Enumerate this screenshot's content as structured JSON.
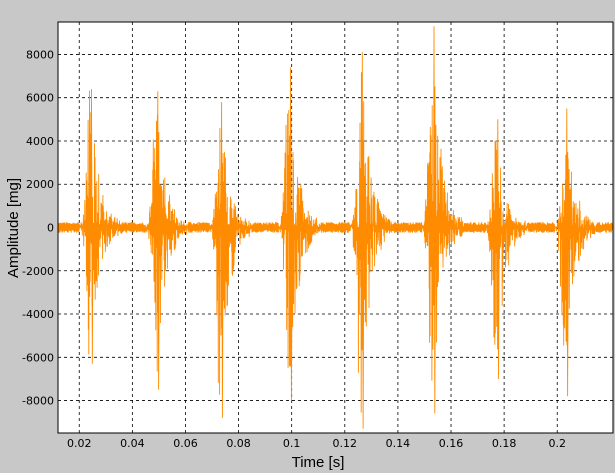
{
  "chart_data": {
    "type": "line",
    "title": "",
    "xlabel": "Time [s]",
    "ylabel": "Amplitude [mg]",
    "xlim": [
      0.012,
      0.221
    ],
    "ylim": [
      -9500,
      9500
    ],
    "xticks": [
      0.02,
      0.04,
      0.06,
      0.08,
      0.1,
      0.12,
      0.14,
      0.16,
      0.18,
      0.2
    ],
    "xtick_labels": [
      "0.02",
      "0.04",
      "0.06",
      "0.08",
      "0.1",
      "0.12",
      "0.14",
      "0.16",
      "0.18",
      "0.2"
    ],
    "yticks": [
      -8000,
      -6000,
      -4000,
      -2000,
      0,
      2000,
      4000,
      6000,
      8000
    ],
    "ytick_labels": [
      "-8000",
      "-6000",
      "-4000",
      "-2000",
      "0",
      "2000",
      "4000",
      "6000",
      "8000"
    ],
    "grid": true,
    "grid_style": "dashed",
    "series": [
      {
        "color": "#ff8c00",
        "baseline_amplitude": 250,
        "bursts": [
          {
            "t": 0.024,
            "max": 6400,
            "min": -6300
          },
          {
            "t": 0.049,
            "max": 6300,
            "min": -7500
          },
          {
            "t": 0.073,
            "max": 5800,
            "min": -8800
          },
          {
            "t": 0.099,
            "max": 7400,
            "min": -8000
          },
          {
            "t": 0.126,
            "max": 8100,
            "min": -9300
          },
          {
            "t": 0.153,
            "max": 9300,
            "min": -8600
          },
          {
            "t": 0.177,
            "max": 5000,
            "min": -7000
          },
          {
            "t": 0.203,
            "max": 5500,
            "min": -7800
          }
        ]
      }
    ]
  }
}
